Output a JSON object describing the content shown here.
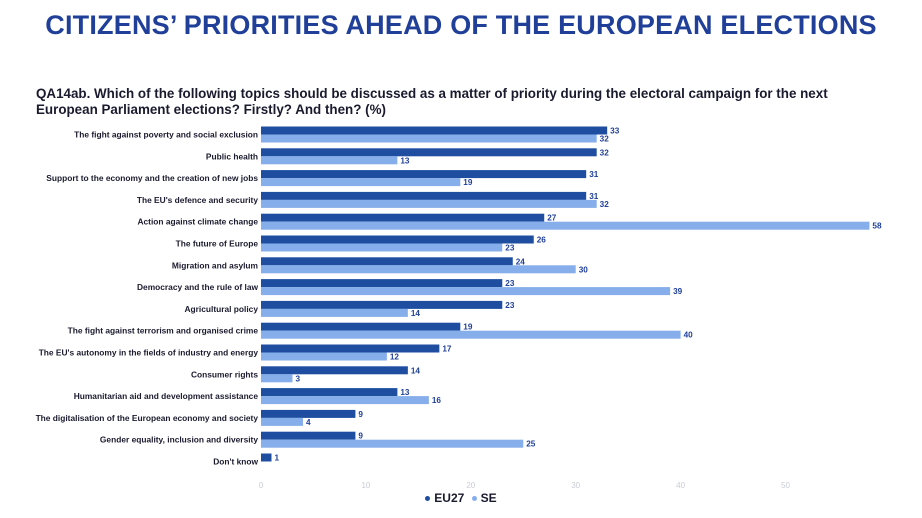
{
  "header": {
    "title": "CITIZENS’ PRIORITIES AHEAD OF THE EUROPEAN ELECTIONS",
    "question": "QA14ab. Which of the following topics should be discussed as a matter of priority during the electoral campaign for the next European Parliament elections? Firstly? And then? (%)"
  },
  "colors": {
    "eu27": "#1f4ea1",
    "se": "#86aeea"
  },
  "chart_data": {
    "type": "bar",
    "orientation": "horizontal",
    "title": "QA14ab. Which of the following topics should be discussed as a matter of priority during the electoral campaign for the next European Parliament elections? Firstly? And then? (%)",
    "categories": [
      "The fight against poverty and social exclusion",
      "Public health",
      "Support to the economy and the creation of new jobs",
      "The EU's defence and security",
      "Action against climate change",
      "The future of Europe",
      "Migration and asylum",
      "Democracy and the rule of law",
      "Agricultural policy",
      "The fight against terrorism and organised crime",
      "The EU's autonomy in the fields of industry and energy",
      "Consumer rights",
      "Humanitarian aid and development assistance",
      "The digitalisation of the European economy and society",
      "Gender equality, inclusion and diversity",
      "Don't know"
    ],
    "series": [
      {
        "name": "EU27",
        "values": [
          33,
          32,
          31,
          31,
          27,
          26,
          24,
          23,
          23,
          19,
          17,
          14,
          13,
          9,
          9,
          1
        ]
      },
      {
        "name": "SE",
        "values": [
          32,
          13,
          19,
          32,
          58,
          23,
          30,
          39,
          14,
          40,
          12,
          3,
          16,
          4,
          25,
          null
        ]
      }
    ],
    "xlim": [
      0,
      60
    ],
    "xticks": [
      0,
      10,
      20,
      30,
      40,
      50
    ],
    "legend": "bottom-center",
    "grid": false
  }
}
